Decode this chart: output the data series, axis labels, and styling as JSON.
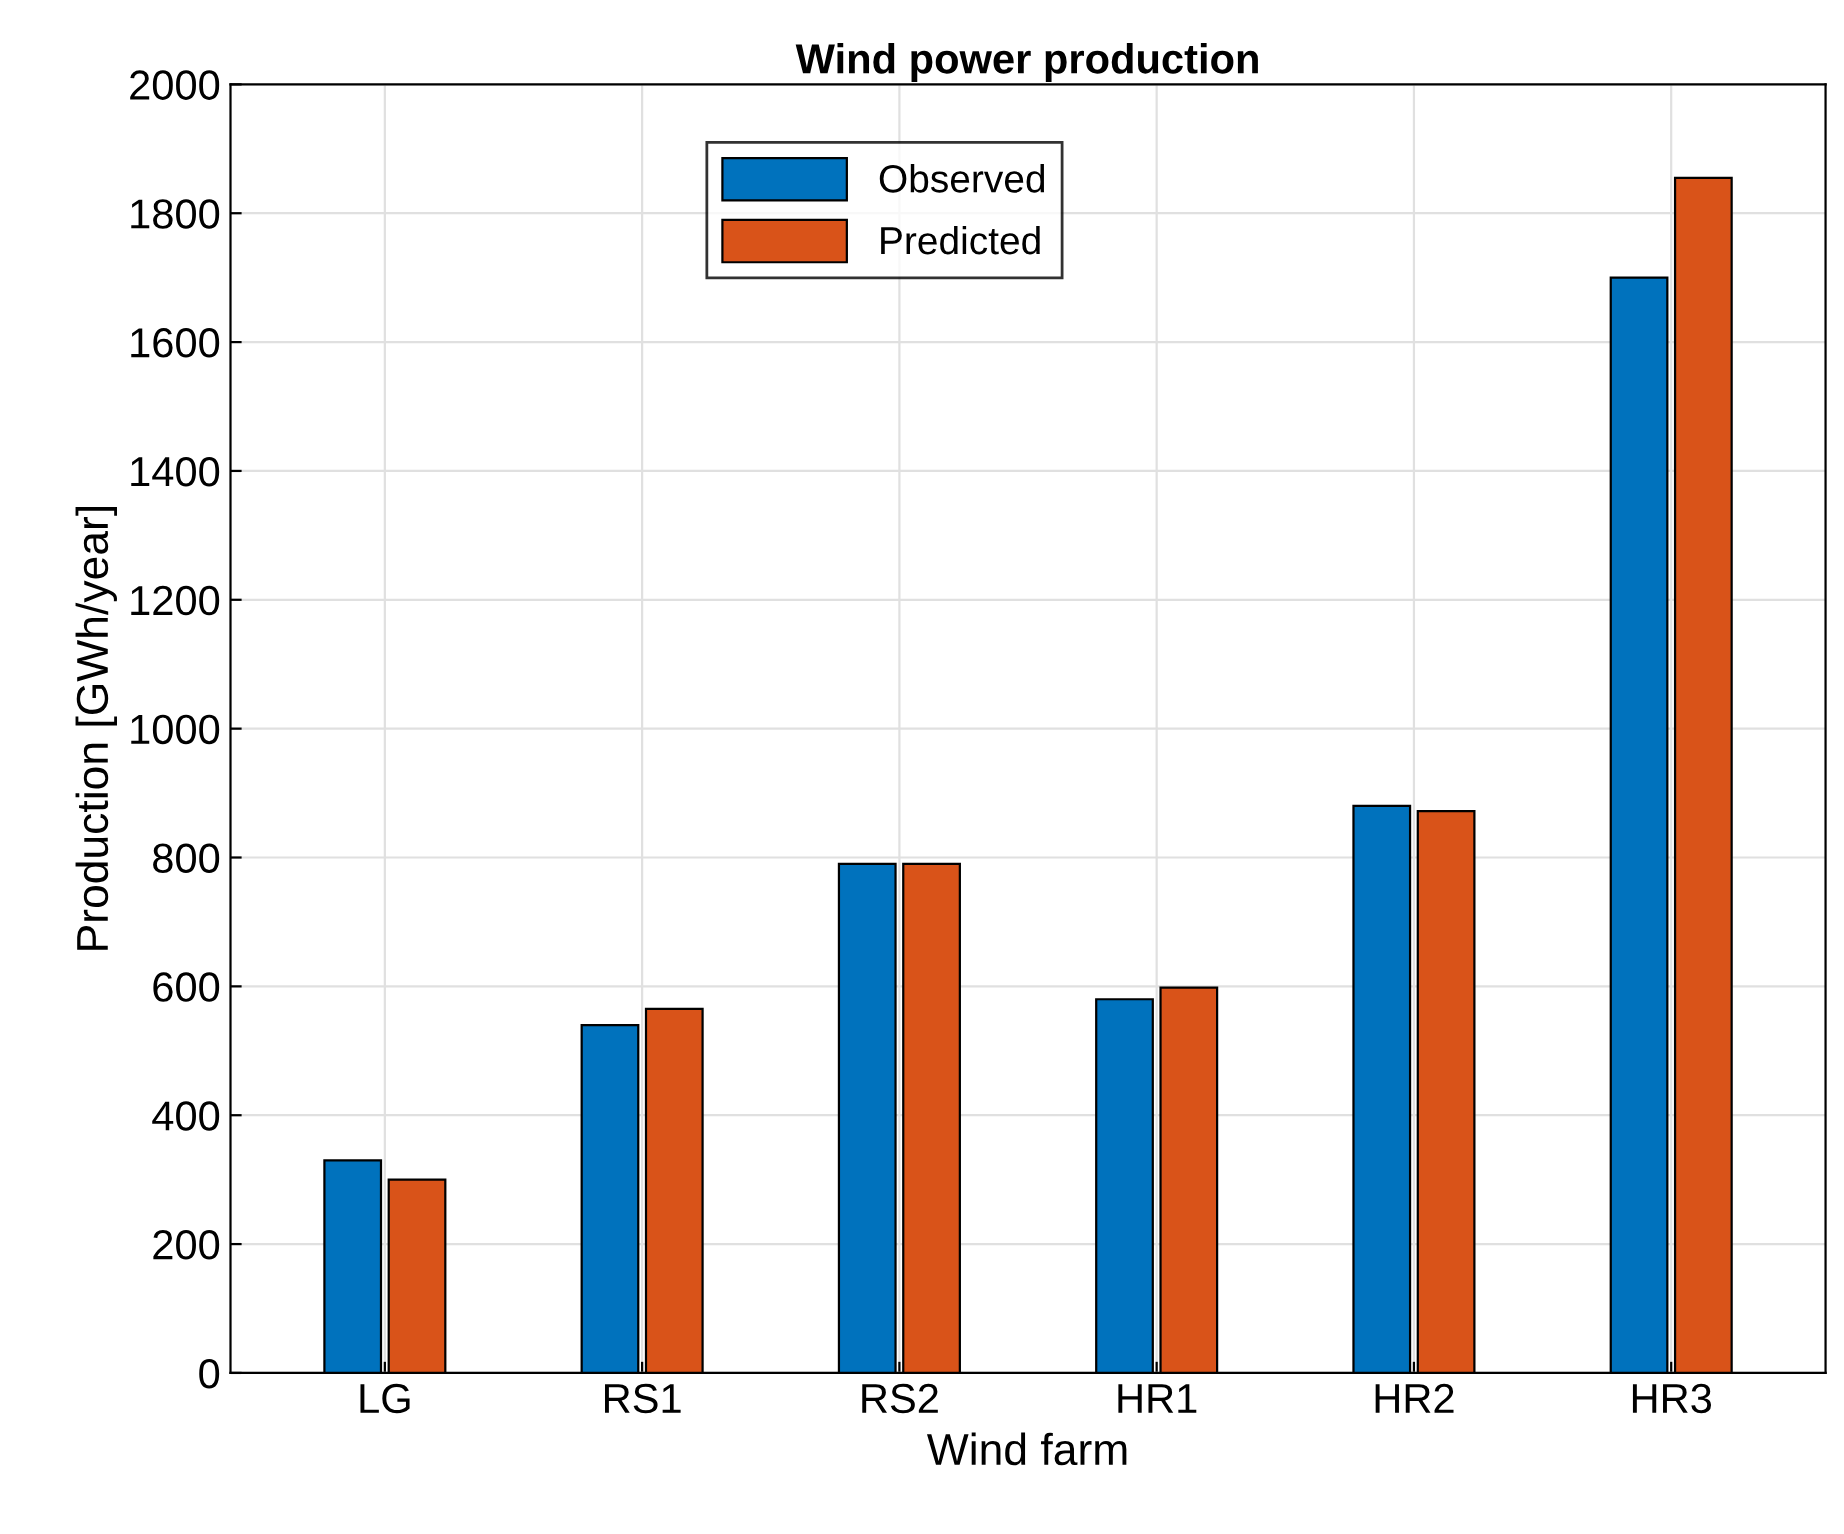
{
  "chart_data": {
    "type": "bar",
    "title": "Wind power production",
    "xlabel": "Wind farm",
    "ylabel": "Production [GWh/year]",
    "categories": [
      "LG",
      "RS1",
      "RS2",
      "HR1",
      "HR2",
      "HR3"
    ],
    "series": [
      {
        "name": "Observed",
        "color": "#0072bd",
        "values": [
          330,
          540,
          790,
          580,
          880,
          1700
        ]
      },
      {
        "name": "Predicted",
        "color": "#d95319",
        "values": [
          300,
          565,
          790,
          598,
          872,
          1855
        ]
      }
    ],
    "ylim": [
      0,
      2000
    ],
    "yticks": [
      0,
      200,
      400,
      600,
      800,
      1000,
      1200,
      1400,
      1600,
      1800,
      2000
    ],
    "grid": true,
    "legend": "top"
  }
}
